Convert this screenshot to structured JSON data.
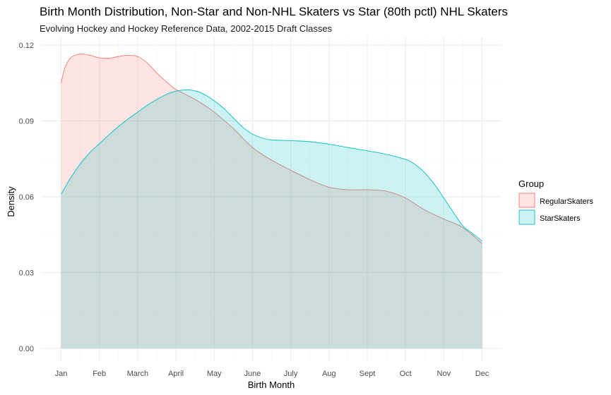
{
  "chart_data": {
    "type": "area",
    "title": "Birth Month Distribution, Non-Star and Non-NHL Skaters vs Star (80th pctl) NHL Skaters",
    "subtitle": "Evolving Hockey and Hockey Reference Data, 2002-2015 Draft Classes",
    "xlabel": "Birth Month",
    "ylabel": "Density",
    "x_tick_labels": [
      "Jan",
      "Feb",
      "March",
      "April",
      "May",
      "June",
      "July",
      "Aug",
      "Sept",
      "Oct",
      "Nov",
      "Dec"
    ],
    "y_tick_labels": [
      "0.00",
      "0.03",
      "0.06",
      "0.09",
      "0.12"
    ],
    "ylim": [
      0,
      0.12
    ],
    "xlim": [
      1,
      12
    ],
    "grid": true,
    "legend": {
      "title": "Group",
      "position": "right"
    },
    "series": [
      {
        "name": "RegularSkaters",
        "fill": "#F8766D",
        "x": [
          1,
          1.1,
          1.25,
          1.5,
          1.75,
          2,
          2.25,
          2.5,
          2.75,
          3,
          3.25,
          3.5,
          3.75,
          4,
          4.25,
          4.5,
          4.75,
          5,
          5.5,
          6,
          6.5,
          7,
          7.5,
          8,
          8.5,
          9,
          9.5,
          10,
          10.5,
          11,
          11.5,
          12
        ],
        "y": [
          0.105,
          0.111,
          0.115,
          0.1165,
          0.116,
          0.115,
          0.1148,
          0.1155,
          0.116,
          0.1155,
          0.113,
          0.109,
          0.1055,
          0.1025,
          0.1005,
          0.0985,
          0.0962,
          0.0935,
          0.087,
          0.0795,
          0.0745,
          0.0705,
          0.0668,
          0.0638,
          0.0628,
          0.0628,
          0.0622,
          0.0595,
          0.0548,
          0.0512,
          0.0478,
          0.0415
        ]
      },
      {
        "name": "StarSkaters",
        "fill": "#00BFC4",
        "x": [
          1,
          1.25,
          1.5,
          1.75,
          2,
          2.25,
          2.5,
          2.75,
          3,
          3.25,
          3.5,
          3.75,
          4,
          4.25,
          4.4,
          4.6,
          4.8,
          5,
          5.25,
          5.5,
          5.75,
          6,
          6.25,
          6.5,
          7,
          7.5,
          8,
          8.5,
          9,
          9.5,
          10,
          10.25,
          10.5,
          10.75,
          11,
          11.25,
          11.5,
          11.75,
          12
        ],
        "y": [
          0.061,
          0.0675,
          0.073,
          0.0775,
          0.081,
          0.0845,
          0.0878,
          0.0908,
          0.0935,
          0.0962,
          0.0985,
          0.1005,
          0.1018,
          0.1023,
          0.1022,
          0.1015,
          0.1,
          0.098,
          0.095,
          0.0912,
          0.0875,
          0.0848,
          0.0833,
          0.0825,
          0.0822,
          0.0818,
          0.0808,
          0.0795,
          0.0782,
          0.0768,
          0.0748,
          0.0728,
          0.0695,
          0.065,
          0.0595,
          0.0538,
          0.0485,
          0.0455,
          0.0425
        ]
      }
    ]
  }
}
